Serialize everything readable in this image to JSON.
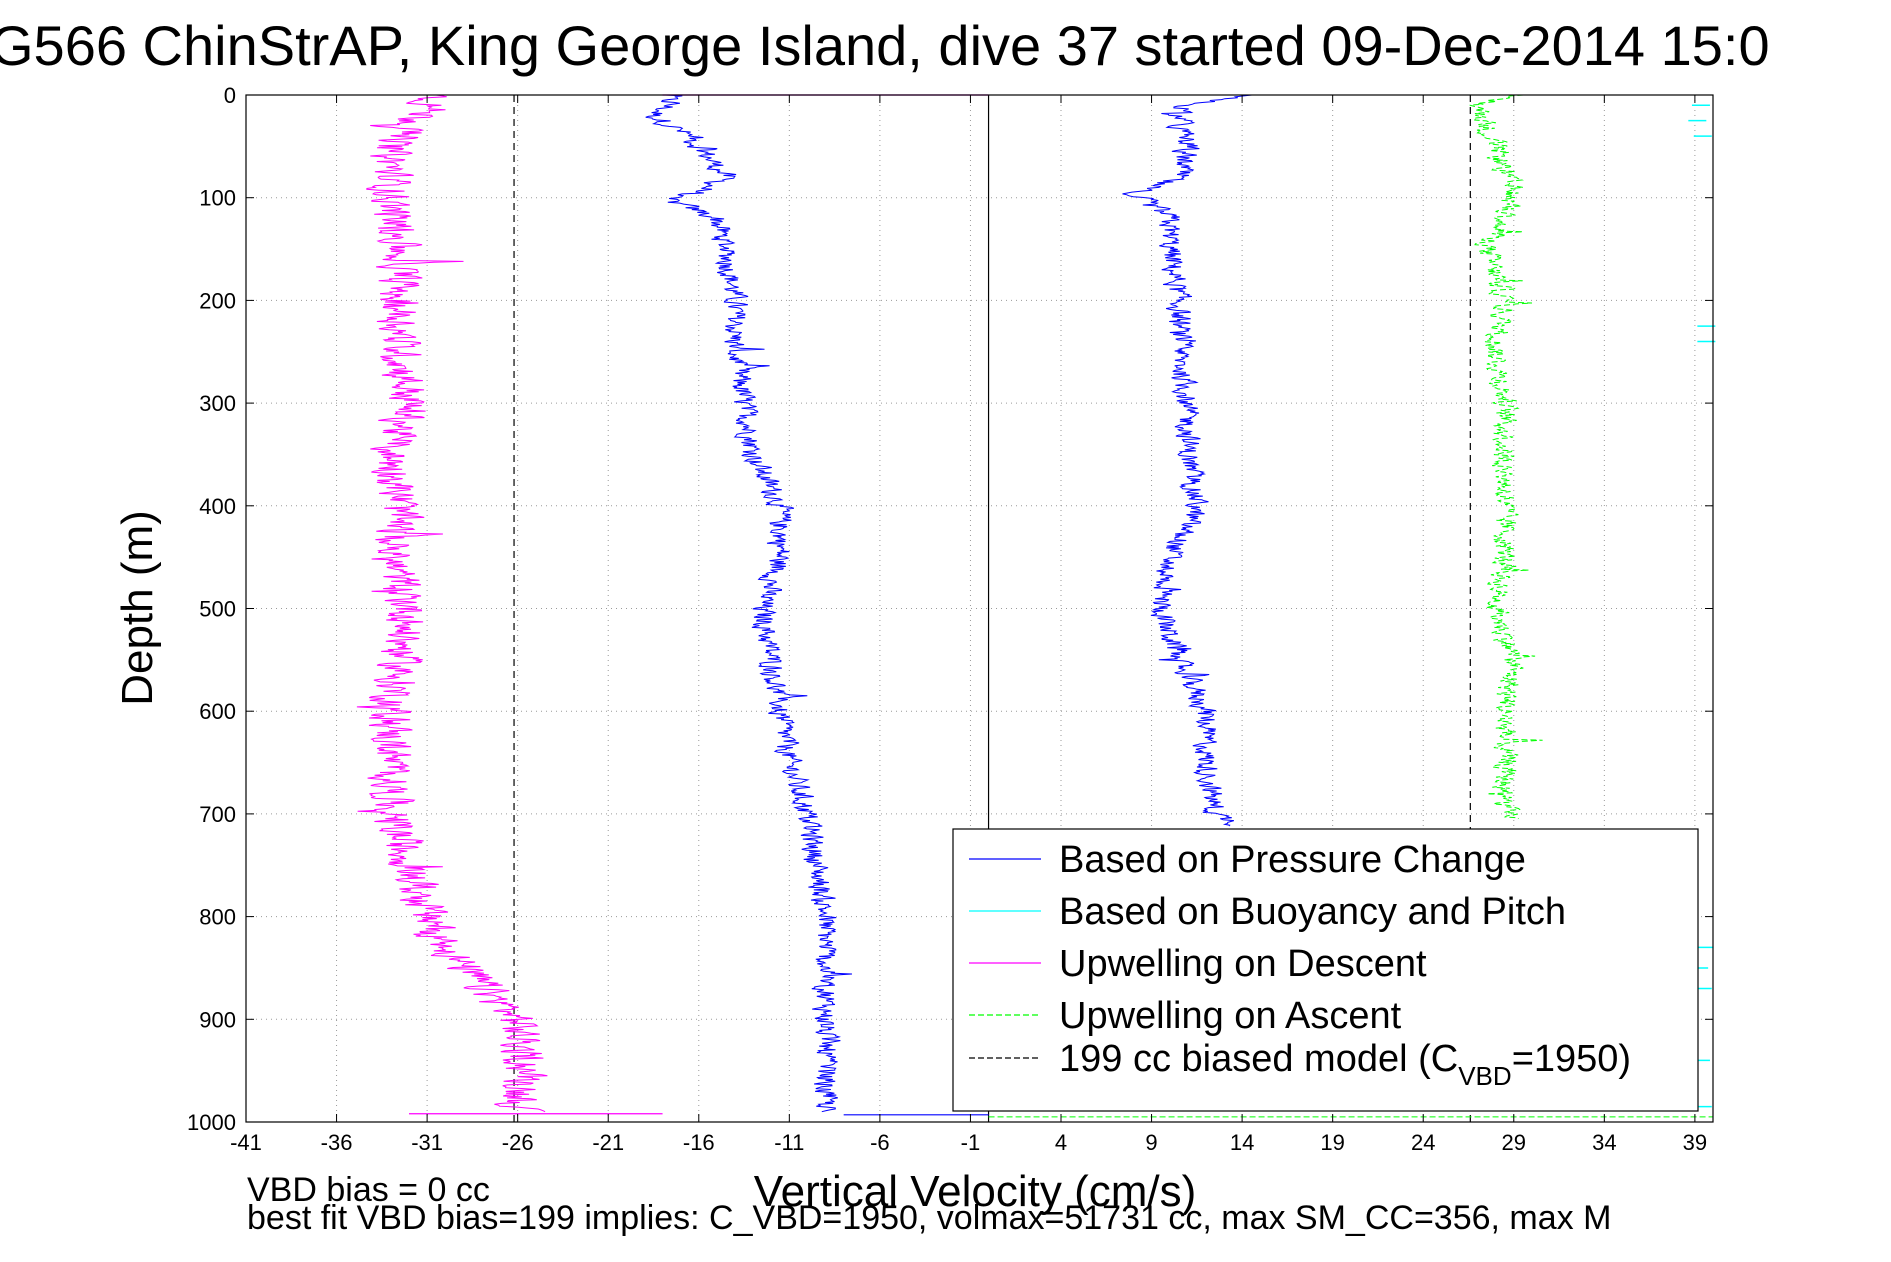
{
  "title": "G566 ChinStrAP, King George Island, dive 37 started 09-Dec-2014 15:0",
  "footer": {
    "line1": "VBD bias = 0 cc",
    "line2": "best fit VBD bias=199 implies: C_VBD=1950, volmax=51731 cc, max SM_CC=356, max M"
  },
  "chart_data": {
    "type": "line",
    "xlabel": "Vertical Velocity (cm/s)",
    "ylabel": "Depth (m)",
    "xlim": [
      -41,
      40
    ],
    "ylim": [
      0,
      1000
    ],
    "y_reversed": true,
    "grid": true,
    "xticks": [
      -41,
      -36,
      -31,
      -26,
      -21,
      -16,
      -11,
      -6,
      -1,
      4,
      9,
      14,
      19,
      24,
      29,
      34,
      39
    ],
    "yticks": [
      0,
      100,
      200,
      300,
      400,
      500,
      600,
      700,
      800,
      900,
      1000
    ],
    "legend_position": "bottom-right",
    "reference_lines": [
      {
        "name": "199 cc biased model",
        "x": -26.2,
        "color": "#000000",
        "style": "dashed"
      },
      {
        "name": "199 cc biased model",
        "x": 26.6,
        "color": "#000000",
        "style": "dashed"
      },
      {
        "name": "zero",
        "x": 0,
        "color": "#000000",
        "style": "solid"
      }
    ],
    "series": [
      {
        "name": "Based on Pressure Change",
        "color": "#0000ff",
        "style": "solid",
        "profiles": [
          {
            "depth": [
              0,
              8,
              20,
              40,
              60,
              80,
              95,
              100,
              120,
              150,
              200,
              250,
              300,
              350,
              400,
              450,
              500,
              550,
              600,
              650,
              700,
              750,
              800,
              850,
              900,
              950,
              990
            ],
            "velocity": [
              -18,
              -17.5,
              -18.5,
              -16.5,
              -15.5,
              -14.5,
              -16,
              -18,
              -15,
              -14.5,
              -14,
              -14,
              -13.5,
              -13,
              -11.5,
              -11.5,
              -12.5,
              -12,
              -11.5,
              -11,
              -10,
              -9.5,
              -9,
              -9,
              -9,
              -9,
              -9
            ]
          },
          {
            "depth": [
              0,
              10,
              30,
              50,
              80,
              95,
              120,
              150,
              200,
              250,
              300,
              350,
              400,
              450,
              500,
              550,
              600,
              650,
              700,
              712
            ],
            "velocity": [
              14,
              11,
              10.5,
              11,
              10.5,
              8,
              10,
              10,
              10.5,
              10.5,
              11,
              11,
              11.5,
              10,
              9.5,
              10.5,
              12,
              12,
              12.5,
              14
            ]
          }
        ]
      },
      {
        "name": "Based on Buoyancy and Pitch",
        "color": "#00ffff",
        "style": "solid",
        "points": [
          {
            "depth": 10,
            "velocity": 39.5
          },
          {
            "depth": 25,
            "velocity": 39.3
          },
          {
            "depth": 40,
            "velocity": 39.6
          },
          {
            "depth": 225,
            "velocity": 39.8
          },
          {
            "depth": 240,
            "velocity": 39.8
          },
          {
            "depth": 830,
            "velocity": 39.7
          },
          {
            "depth": 850,
            "velocity": 39.4
          },
          {
            "depth": 870,
            "velocity": 39.6
          },
          {
            "depth": 940,
            "velocity": 39.5
          },
          {
            "depth": 985,
            "velocity": 39.6
          }
        ]
      },
      {
        "name": "Upwelling on Descent",
        "color": "#ff00ff",
        "style": "solid",
        "profiles": [
          {
            "depth": [
              0,
              15,
              50,
              100,
              150,
              200,
              250,
              300,
              350,
              400,
              450,
              500,
              550,
              600,
              650,
              700,
              750,
              800,
              850,
              900,
              950,
              990
            ],
            "velocity": [
              -30.5,
              -31,
              -33,
              -33,
              -32.5,
              -32.5,
              -32.5,
              -32,
              -33,
              -32.5,
              -33,
              -32,
              -32.5,
              -33,
              -33,
              -33,
              -32,
              -31,
              -29,
              -26,
              -25.5,
              -26
            ]
          }
        ]
      },
      {
        "name": "Upwelling on Ascent",
        "color": "#00ff00",
        "style": "dashed",
        "profiles": [
          {
            "depth": [
              0,
              10,
              50,
              100,
              150,
              200,
              250,
              300,
              350,
              400,
              450,
              500,
              550,
              600,
              650,
              700,
              705
            ],
            "velocity": [
              29,
              27,
              28,
              29,
              27.5,
              28.5,
              28,
              28.5,
              28.5,
              28.5,
              28.5,
              28,
              29,
              28.5,
              28.5,
              28.5,
              29
            ]
          }
        ]
      },
      {
        "name": "199 cc biased model (C_VBD=1950)",
        "color": "#000000",
        "style": "dashed",
        "legend_label": "199 cc biased model (C",
        "legend_subscript": "VBD",
        "legend_suffix": "=1950)"
      }
    ]
  }
}
